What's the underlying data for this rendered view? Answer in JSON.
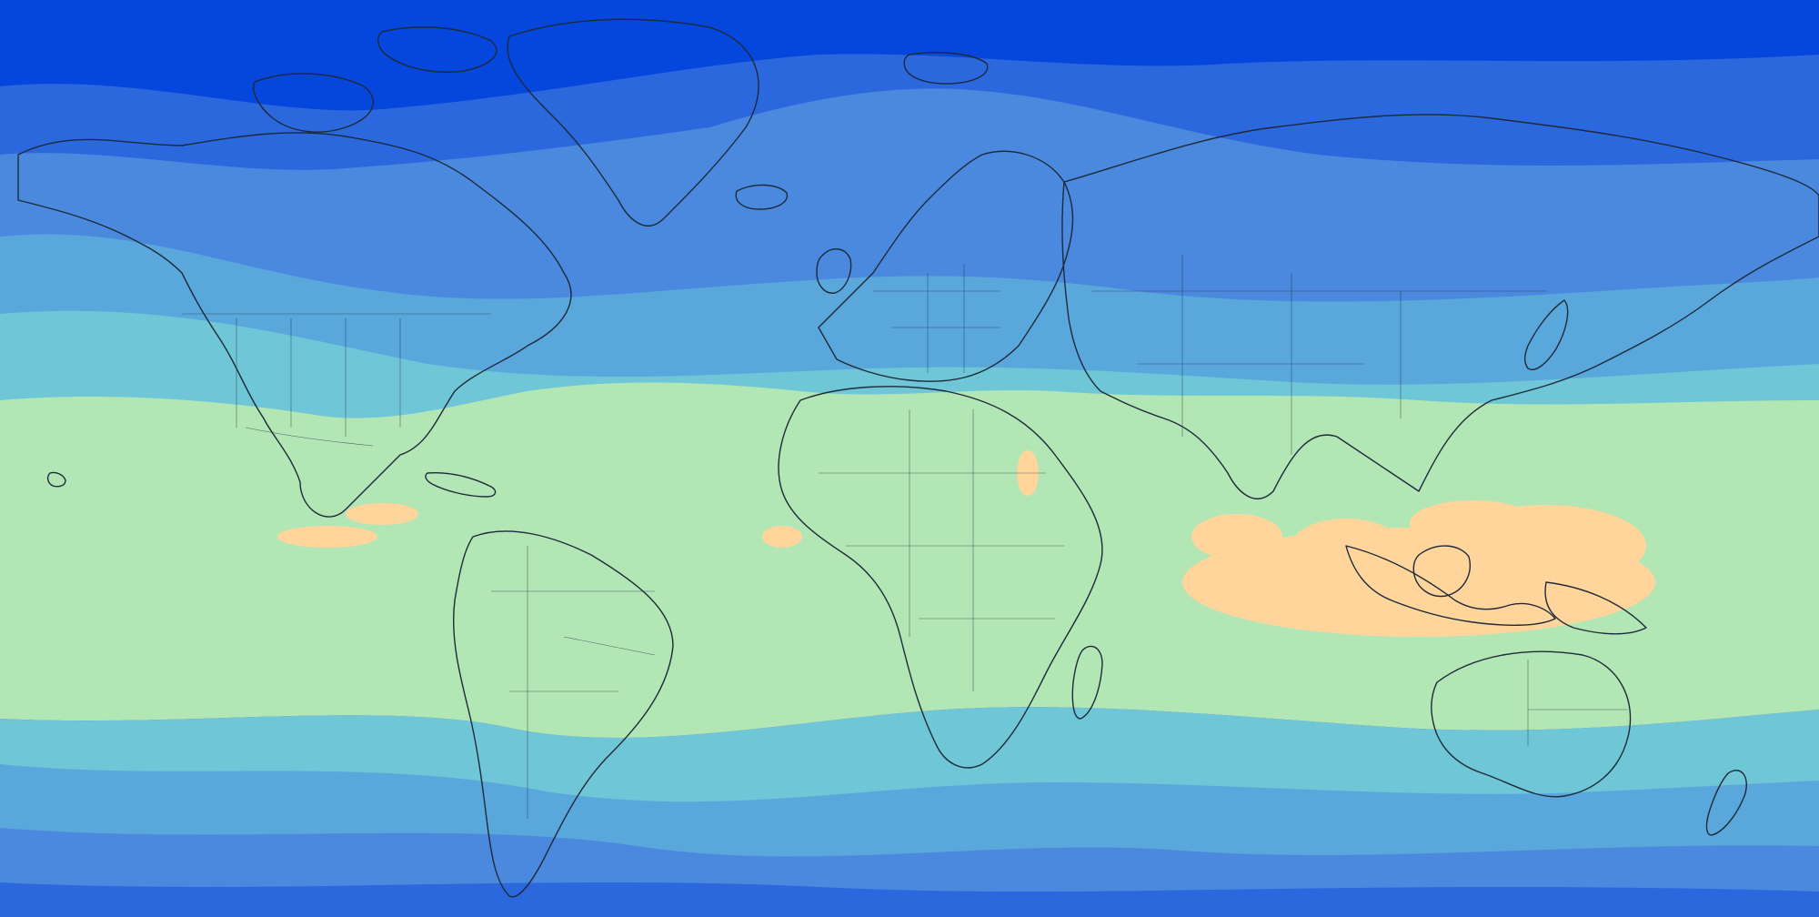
{
  "map": {
    "projection": "equirectangular",
    "colors": {
      "band_0": "#0546dc",
      "band_1": "#2b67dd",
      "band_2": "#4a89de",
      "band_3": "#5aa7dc",
      "band_4": "#6fc6d6",
      "band_5": "#b3e6b5",
      "band_6": "#ffd59b",
      "outline": "#1d2a3a"
    },
    "icons": [
      "coastline-outline",
      "country-border-lines"
    ]
  }
}
